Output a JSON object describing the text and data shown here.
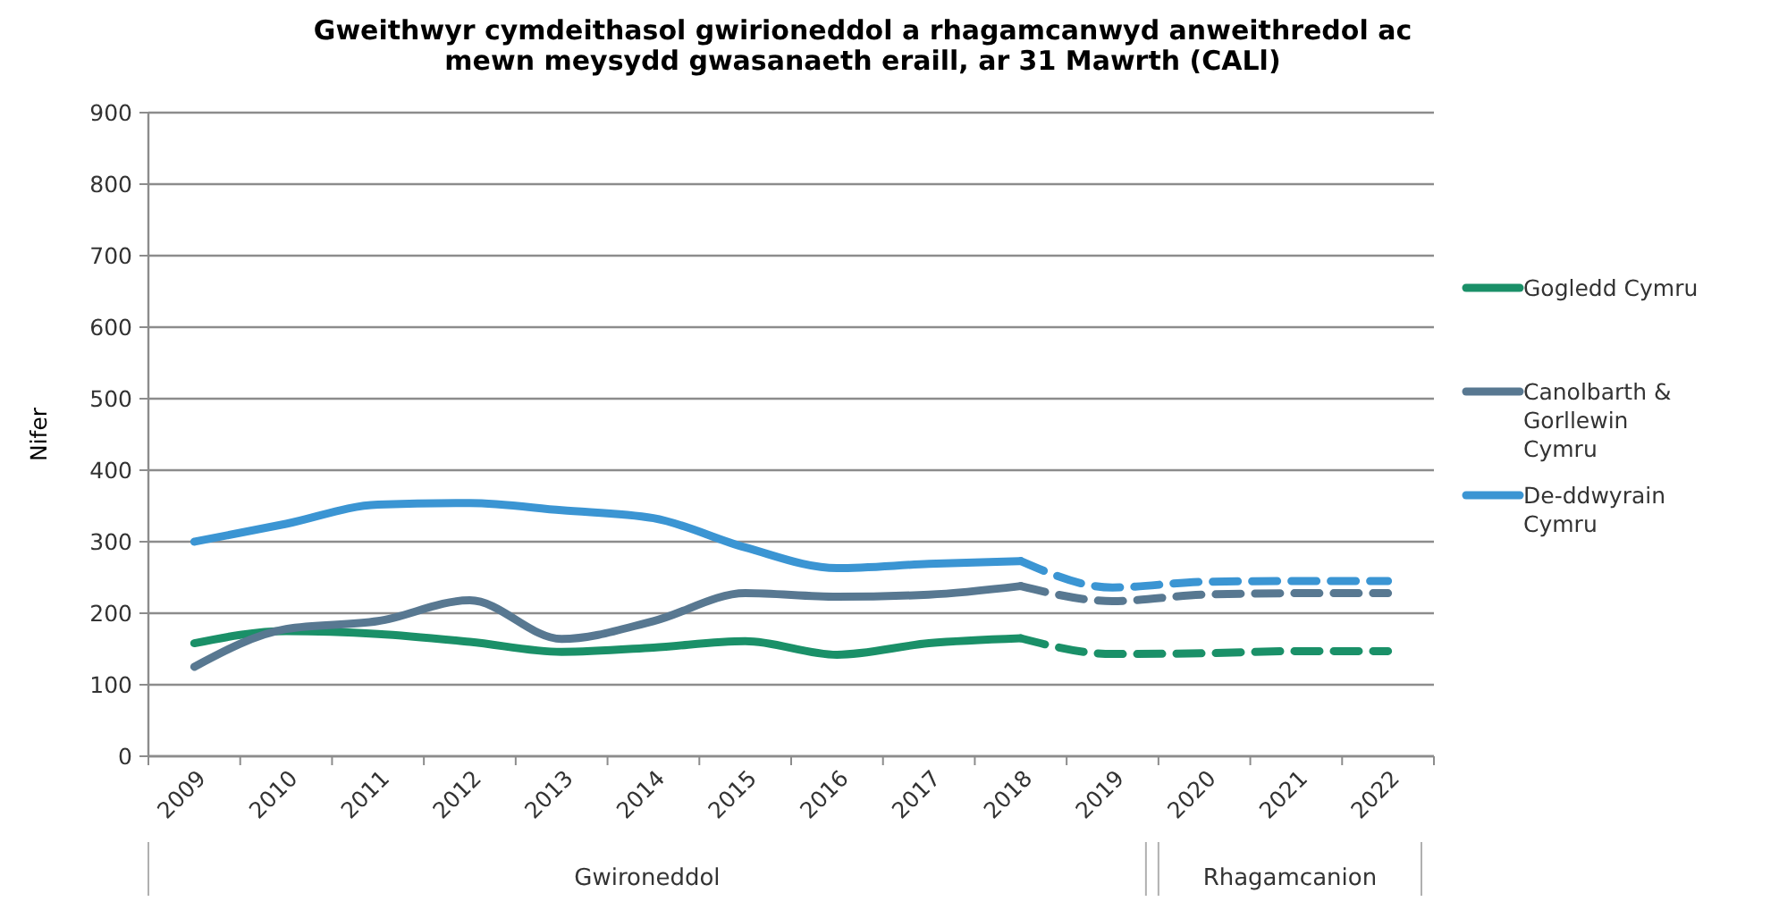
{
  "chart_data": {
    "type": "line",
    "title": "Gweithwyr cymdeithasol gwirioneddol a rhagamcanwyd anweithredol ac mewn meysydd gwasanaeth eraill, ar 31 Mawrth (CALl)",
    "ylabel": "Nifer",
    "categories": [
      "2009",
      "2010",
      "2011",
      "2012",
      "2013",
      "2014",
      "2015",
      "2016",
      "2017",
      "2018",
      "2019",
      "2020",
      "2021",
      "2022"
    ],
    "series": [
      {
        "name": "Gogledd Cymru",
        "color": "#1a9068",
        "line_style": "solid",
        "values": [
          158,
          175,
          171,
          160,
          146,
          152,
          161,
          142,
          158,
          165,
          null,
          null,
          null,
          null
        ]
      },
      {
        "name": "Canolbarth & Gorllewin Cymru",
        "color": "#587891",
        "line_style": "solid",
        "values": [
          125,
          178,
          189,
          218,
          164,
          189,
          228,
          223,
          226,
          238,
          null,
          null,
          null,
          null
        ]
      },
      {
        "name": "De-ddwyrain Cymru",
        "color": "#3b95d3",
        "line_style": "solid",
        "values": [
          300,
          325,
          352,
          354,
          344,
          333,
          292,
          263,
          269,
          273,
          null,
          null,
          null,
          null
        ]
      },
      {
        "color": "#1a9068",
        "line_style": "dashed",
        "values": [
          null,
          null,
          null,
          null,
          null,
          null,
          null,
          null,
          null,
          165,
          143,
          144,
          147,
          147
        ]
      },
      {
        "color": "#587891",
        "line_style": "dashed",
        "values": [
          null,
          null,
          null,
          null,
          null,
          null,
          null,
          null,
          null,
          238,
          217,
          226,
          228,
          228
        ]
      },
      {
        "color": "#3b95d3",
        "line_style": "dashed",
        "values": [
          null,
          null,
          null,
          null,
          null,
          null,
          null,
          null,
          null,
          273,
          236,
          244,
          245,
          245
        ]
      }
    ],
    "ylim": [
      0,
      900
    ],
    "yticks": [
      0,
      100,
      200,
      300,
      400,
      500,
      600,
      700,
      800,
      900
    ],
    "grid": "y",
    "legend": "right",
    "marker": "none",
    "annotations": [
      "Gwironeddol",
      "Rhagamcanion"
    ]
  }
}
